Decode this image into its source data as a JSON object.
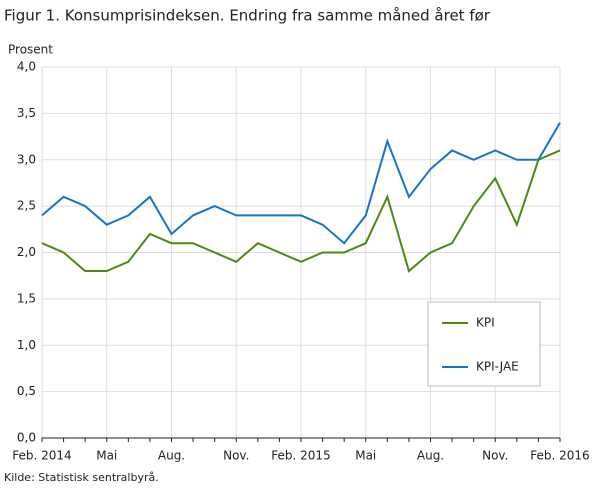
{
  "chart_data": {
    "type": "line",
    "title": "Figur 1. Konsumprisindeksen. Endring fra samme måned året før",
    "y_label": "Prosent",
    "source": "Kilde: Statistisk sentralbyrå.",
    "categories": [
      "Feb. 2014",
      null,
      null,
      "Mai",
      null,
      null,
      "Aug.",
      null,
      null,
      "Nov.",
      null,
      null,
      "Feb. 2015",
      null,
      null,
      "Mai",
      null,
      null,
      "Aug.",
      null,
      null,
      "Nov.",
      null,
      null,
      "Feb. 2016"
    ],
    "series": [
      {
        "name": "KPI",
        "color": "#4f8a10",
        "values": [
          2.1,
          2.0,
          1.8,
          1.8,
          1.9,
          2.2,
          2.1,
          2.1,
          2.0,
          1.9,
          2.1,
          2.0,
          1.9,
          2.0,
          2.0,
          2.1,
          2.6,
          1.8,
          2.0,
          2.1,
          2.5,
          2.8,
          2.3,
          3.0,
          3.1
        ]
      },
      {
        "name": "KPI-JAE",
        "color": "#1a73c7",
        "values": [
          2.4,
          2.6,
          2.5,
          2.3,
          2.4,
          2.6,
          2.2,
          2.4,
          2.5,
          2.4,
          2.4,
          2.4,
          2.4,
          2.3,
          2.1,
          2.4,
          3.2,
          2.6,
          2.9,
          3.1,
          3.0,
          3.1,
          3.0,
          3.0,
          3.4
        ]
      }
    ],
    "ylim": [
      0,
      4
    ],
    "yticks": [
      {
        "value": 0,
        "label": "0,0"
      },
      {
        "value": 0.5,
        "label": "0,5"
      },
      {
        "value": 1,
        "label": "1,0"
      },
      {
        "value": 1.5,
        "label": "1,5"
      },
      {
        "value": 2,
        "label": "2,0"
      },
      {
        "value": 2.5,
        "label": "2,5"
      },
      {
        "value": 3,
        "label": "3,0"
      },
      {
        "value": 3.5,
        "label": "3,5"
      },
      {
        "value": 4,
        "label": "4,0"
      }
    ],
    "grid": true
  }
}
